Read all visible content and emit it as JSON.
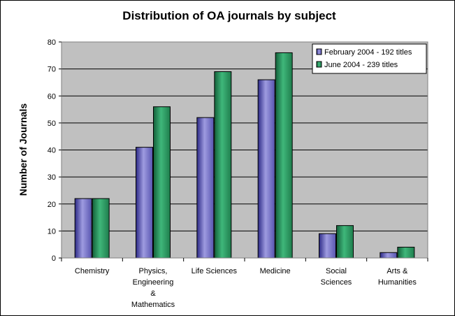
{
  "chart_data": {
    "type": "bar",
    "title": "Distribution of OA journals by subject",
    "xlabel": "",
    "ylabel": "Number of Journals",
    "ylim": [
      0,
      80
    ],
    "yticks": [
      "0",
      "10",
      "20",
      "30",
      "40",
      "50",
      "60",
      "70",
      "80"
    ],
    "grid": true,
    "legend_position": "top-right",
    "categories": [
      [
        "Chemistry"
      ],
      [
        "Physics,",
        "Engineering",
        "&",
        "Mathematics"
      ],
      [
        "Life Sciences"
      ],
      [
        "Medicine"
      ],
      [
        "Social",
        "Sciences"
      ],
      [
        "Arts &",
        "Humanities"
      ]
    ],
    "series": [
      {
        "name": "February 2004 - 192 titles",
        "color": "#7b78c8",
        "values": [
          22,
          41,
          52,
          66,
          9,
          2
        ]
      },
      {
        "name": "June 2004 - 239 titles",
        "color": "#2e9e66",
        "values": [
          22,
          56,
          69,
          76,
          12,
          4
        ]
      }
    ],
    "colors": {
      "plot_background": "#c0c0c0",
      "gridline": "#000000"
    }
  }
}
